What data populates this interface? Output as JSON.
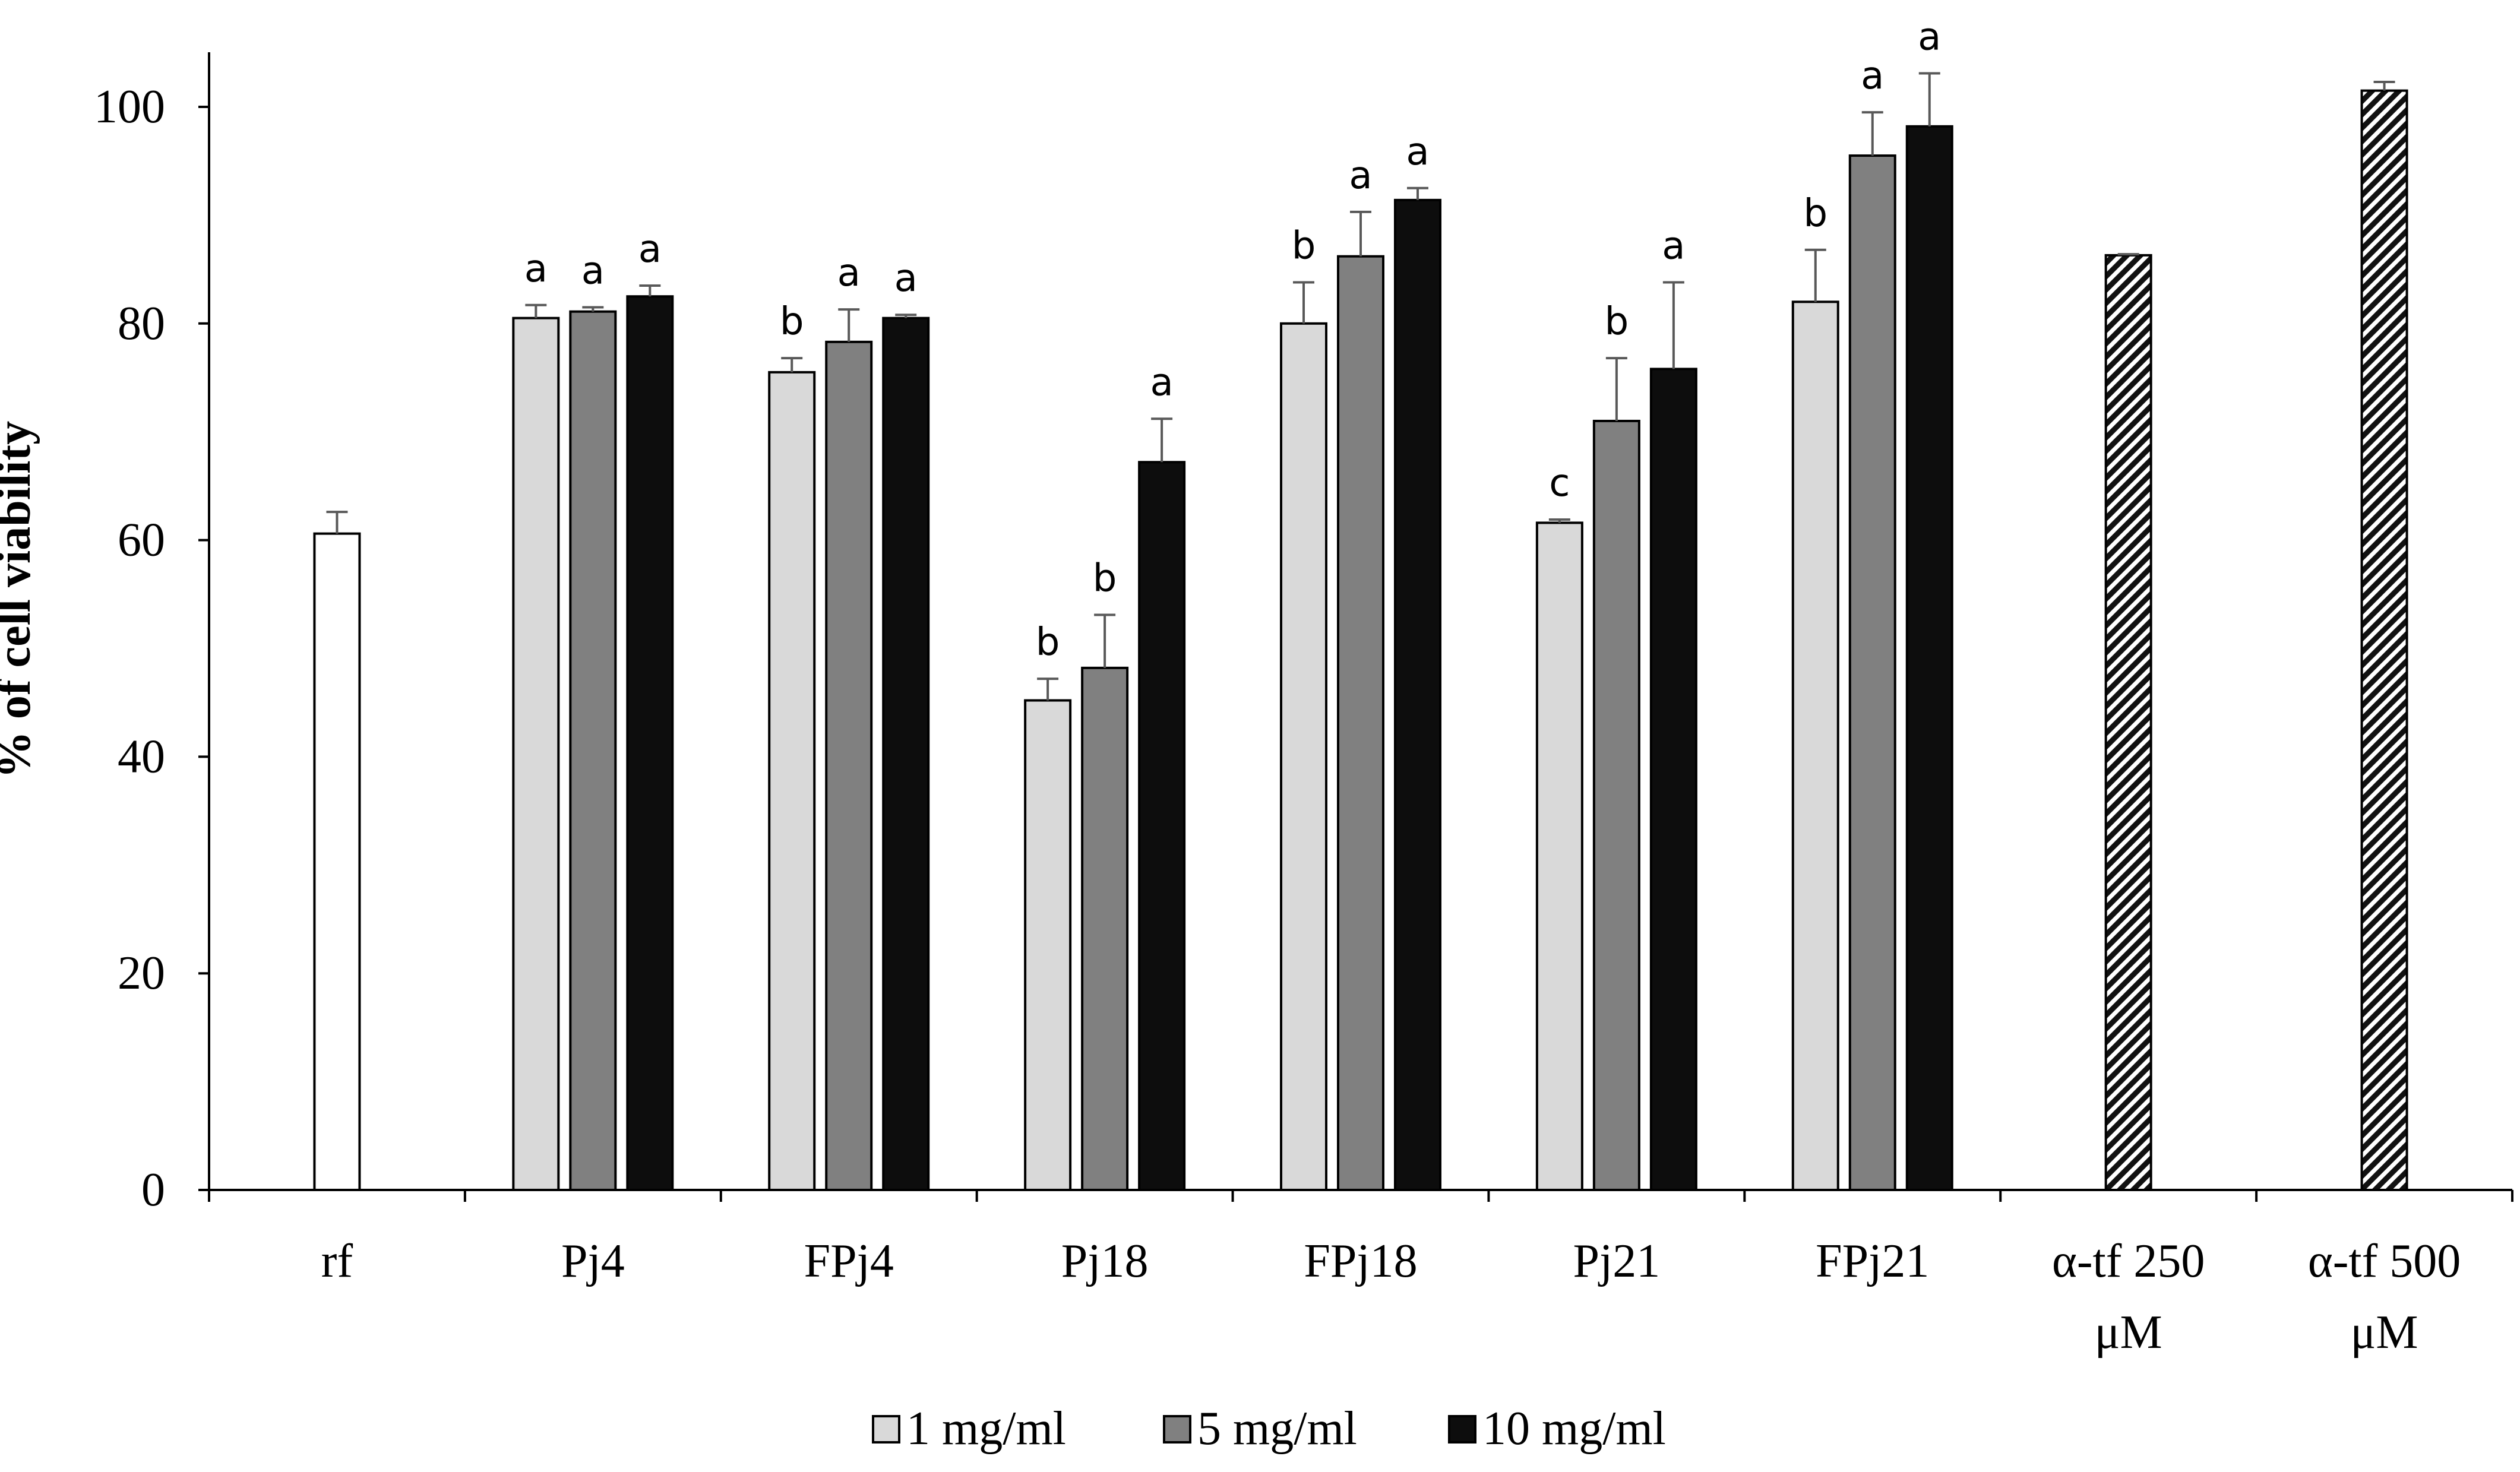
{
  "chart_data": {
    "type": "bar",
    "ylabel": "% of cell viability",
    "xlabel": "",
    "ylim": [
      0,
      100
    ],
    "yticks": [
      0,
      20,
      40,
      60,
      80,
      100
    ],
    "grid": false,
    "legend_position": "bottom-center",
    "categories": [
      {
        "lines": [
          "rf"
        ]
      },
      {
        "lines": [
          "Pj4"
        ]
      },
      {
        "lines": [
          "FPj4"
        ]
      },
      {
        "lines": [
          "Pj18"
        ]
      },
      {
        "lines": [
          "FPj18"
        ]
      },
      {
        "lines": [
          "Pj21"
        ]
      },
      {
        "lines": [
          "FPj21"
        ]
      },
      {
        "lines": [
          "α-tf 250",
          "μM"
        ]
      },
      {
        "lines": [
          "α-tf 500",
          "μM"
        ]
      }
    ],
    "series": [
      {
        "name": "1 mg/ml",
        "color": "#d9d9d9",
        "values": [
          null,
          80.5,
          75.5,
          45.2,
          80.0,
          61.6,
          82.0,
          null,
          null
        ],
        "errors": [
          null,
          1.2,
          1.3,
          2.0,
          3.8,
          0.3,
          4.8,
          null,
          null
        ],
        "labels": [
          "",
          "a",
          "b",
          "b",
          "b",
          "c",
          "b",
          "",
          ""
        ]
      },
      {
        "name": "5 mg/ml",
        "color": "#808080",
        "values": [
          null,
          81.1,
          78.3,
          48.2,
          86.2,
          71.0,
          95.5,
          null,
          null
        ],
        "errors": [
          null,
          0.4,
          3.0,
          4.9,
          4.1,
          5.8,
          4.0,
          null,
          null
        ],
        "labels": [
          "",
          "a",
          "a",
          "b",
          "a",
          "b",
          "a",
          "",
          ""
        ]
      },
      {
        "name": "10 mg/ml",
        "color": "#0d0d0d",
        "values": [
          null,
          82.5,
          80.5,
          67.2,
          91.4,
          75.8,
          98.2,
          null,
          null
        ],
        "errors": [
          null,
          1.0,
          0.3,
          4.0,
          1.1,
          8.0,
          4.9,
          null,
          null
        ],
        "labels": [
          "",
          "a",
          "a",
          "a",
          "a",
          "a",
          "a",
          "",
          ""
        ]
      }
    ],
    "single_bars": [
      {
        "category_index": 0,
        "value": 60.6,
        "error": 2.0,
        "fill": "white"
      },
      {
        "category_index": 7,
        "value": 86.3,
        "error": 0.1,
        "fill": "hatch"
      },
      {
        "category_index": 8,
        "value": 101.5,
        "error": 0.8,
        "fill": "hatch"
      }
    ]
  }
}
